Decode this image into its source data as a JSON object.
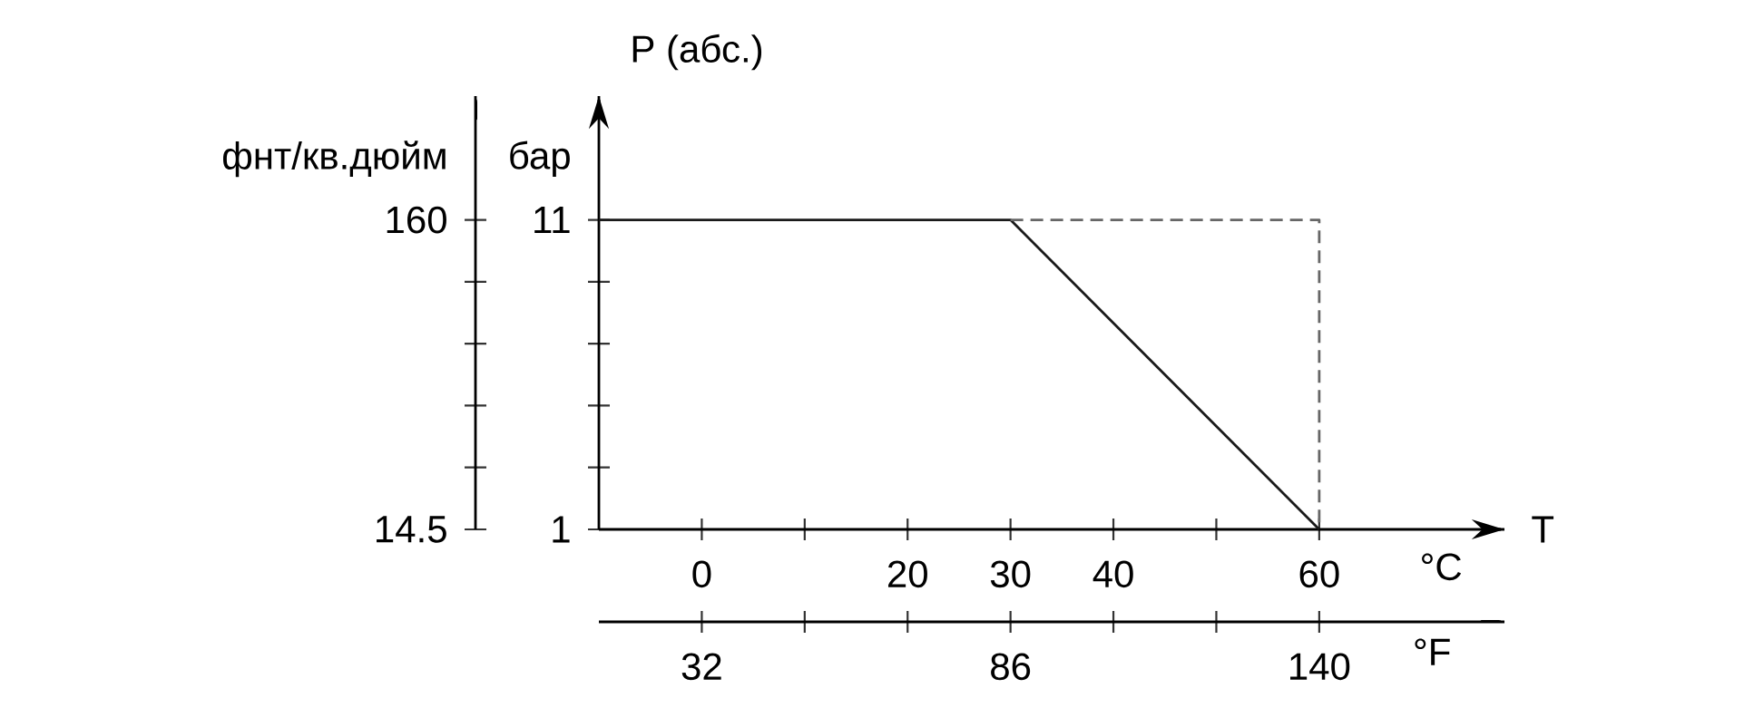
{
  "chart_data": {
    "type": "line",
    "xlabel": "°C",
    "x2label": "°F",
    "ylabel": "бар",
    "y2label": "фнт/кв.дюйм",
    "annotations": [
      "P (абс.)",
      "T"
    ],
    "xlim": [
      -10,
      78
    ],
    "xticks": [
      0,
      {
        "value": 10,
        "label": null
      },
      20,
      30,
      40,
      {
        "value": 50,
        "label": null
      },
      60
    ],
    "x2lim": [
      14,
      172.4
    ],
    "x2ticks": [
      32,
      {
        "value": 50,
        "label": null
      },
      {
        "value": 68,
        "label": null
      },
      86,
      {
        "value": 104,
        "label": null
      },
      {
        "value": 122,
        "label": null
      },
      140
    ],
    "ylim": [
      1,
      15
    ],
    "yticks": [
      1,
      {
        "value": 3,
        "label": null
      },
      {
        "value": 5,
        "label": null
      },
      {
        "value": 7,
        "label": null
      },
      {
        "value": 9,
        "label": null
      },
      11
    ],
    "y2lim": [
      14.5,
      218.2
    ],
    "y2ticks": [
      14.5,
      {
        "value": 43.6,
        "label": null
      },
      {
        "value": 72.7,
        "label": null
      },
      {
        "value": 101.8,
        "label": null
      },
      {
        "value": 130.9,
        "label": null
      },
      160
    ],
    "series": [
      {
        "x": [
          -10,
          30,
          60
        ],
        "values": [
          11,
          11,
          1
        ],
        "color": "#1a1a1a",
        "line_style": "solid"
      },
      {
        "x": [
          30,
          60,
          60
        ],
        "values": [
          11,
          11,
          1
        ],
        "color": "#666666",
        "line_style": "dashed"
      }
    ]
  }
}
